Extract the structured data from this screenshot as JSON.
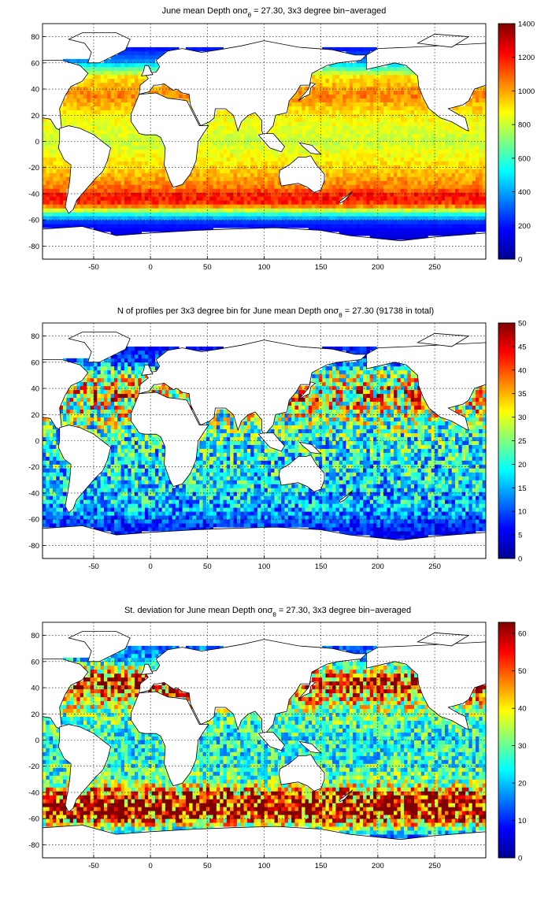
{
  "chart_data": [
    {
      "type": "heatmap",
      "title": "June mean Depth on",
      "title_symbol": "σ",
      "title_subscript": "θ",
      "title_rest": " = 27.30, 3x3 degree bin−averaged",
      "xlim": [
        -95,
        295
      ],
      "ylim": [
        -90,
        90
      ],
      "xticks": [
        -50,
        0,
        50,
        100,
        150,
        200,
        250
      ],
      "yticks": [
        -80,
        -60,
        -40,
        -20,
        0,
        20,
        40,
        60,
        80
      ],
      "grid": true,
      "colorbar": {
        "range": [
          0,
          1400
        ],
        "ticks": [
          0,
          200,
          400,
          600,
          800,
          1000,
          1200,
          1400
        ],
        "colormap": "jet",
        "placement": "right"
      },
      "cell_size_deg": 3,
      "field_profile": [
        {
          "lat": -74,
          "value": 100
        },
        {
          "lat": -62,
          "value": 220
        },
        {
          "lat": -55,
          "value": 600
        },
        {
          "lat": -48,
          "value": 1150
        },
        {
          "lat": -42,
          "value": 1220
        },
        {
          "lat": -35,
          "value": 1060
        },
        {
          "lat": -20,
          "value": 930
        },
        {
          "lat": 0,
          "value": 800
        },
        {
          "lat": 20,
          "value": 880
        },
        {
          "lat": 35,
          "value": 1050
        },
        {
          "lat": 50,
          "value": 900
        },
        {
          "lat": 62,
          "value": 350
        },
        {
          "lat": 80,
          "value": 50
        }
      ]
    },
    {
      "type": "heatmap",
      "title": "N of profiles per 3x3 degree bin for June mean Depth on",
      "title_symbol": "σ",
      "title_subscript": "θ",
      "title_rest": " = 27.30 (91738 in total)",
      "xlim": [
        -95,
        295
      ],
      "ylim": [
        -90,
        90
      ],
      "xticks": [
        -50,
        0,
        50,
        100,
        150,
        200,
        250
      ],
      "yticks": [
        -80,
        -60,
        -40,
        -20,
        0,
        20,
        40,
        60,
        80
      ],
      "grid": true,
      "colorbar": {
        "range": [
          0,
          50
        ],
        "ticks": [
          0,
          5,
          10,
          15,
          20,
          25,
          30,
          35,
          40,
          45,
          50
        ],
        "colormap": "jet",
        "placement": "right"
      },
      "cell_size_deg": 3,
      "field_profile": [
        {
          "lat": -74,
          "value": 5
        },
        {
          "lat": -62,
          "value": 10
        },
        {
          "lat": -50,
          "value": 16
        },
        {
          "lat": -30,
          "value": 18
        },
        {
          "lat": 0,
          "value": 20
        },
        {
          "lat": 20,
          "value": 27
        },
        {
          "lat": 35,
          "value": 34
        },
        {
          "lat": 50,
          "value": 26
        },
        {
          "lat": 62,
          "value": 10
        },
        {
          "lat": 80,
          "value": 3
        }
      ]
    },
    {
      "type": "heatmap",
      "title": "St. deviation for June mean Depth on",
      "title_symbol": "σ",
      "title_subscript": "θ",
      "title_rest": " = 27.30, 3x3 degree bin−averaged",
      "xlim": [
        -95,
        295
      ],
      "ylim": [
        -90,
        90
      ],
      "xticks": [
        -50,
        0,
        50,
        100,
        150,
        200,
        250
      ],
      "yticks": [
        -80,
        -60,
        -40,
        -20,
        0,
        20,
        40,
        60,
        80
      ],
      "grid": true,
      "colorbar": {
        "range": [
          0,
          63
        ],
        "ticks": [
          0,
          10,
          20,
          30,
          40,
          50,
          60
        ],
        "colormap": "jet",
        "placement": "right"
      },
      "cell_size_deg": 3,
      "field_profile": [
        {
          "lat": -74,
          "value": 12
        },
        {
          "lat": -62,
          "value": 45
        },
        {
          "lat": -55,
          "value": 63
        },
        {
          "lat": -48,
          "value": 60
        },
        {
          "lat": -40,
          "value": 48
        },
        {
          "lat": -30,
          "value": 28
        },
        {
          "lat": 0,
          "value": 24
        },
        {
          "lat": 20,
          "value": 30
        },
        {
          "lat": 35,
          "value": 45
        },
        {
          "lat": 45,
          "value": 55
        },
        {
          "lat": 62,
          "value": 20
        },
        {
          "lat": 80,
          "value": 10
        }
      ]
    }
  ]
}
